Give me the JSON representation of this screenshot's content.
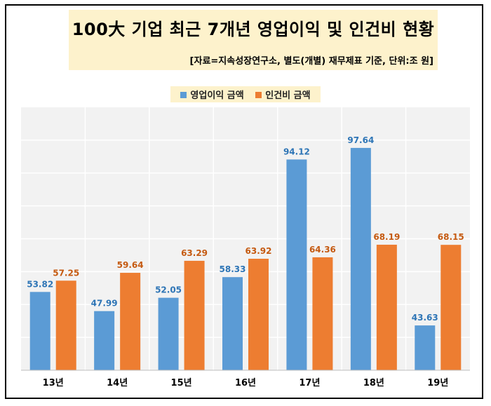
{
  "header": {
    "title": "100大 기업 최근 7개년 영업이익 및 인건비 현황",
    "source": "[자료=지속성장연구소, 별도(개별) 재무제표 기준, 단위:조 원]"
  },
  "colors": {
    "series1": "#5b9bd5",
    "series2": "#ed7d31",
    "label1": "#2e75b6",
    "label2": "#c55a11",
    "plot_bg": "#f2f2f2",
    "grid": "#ffffff"
  },
  "chart_data": {
    "type": "bar",
    "categories": [
      "13년",
      "14년",
      "15년",
      "16년",
      "17년",
      "18년",
      "19년"
    ],
    "series": [
      {
        "name": "영업이익 금액",
        "values": [
          53.82,
          47.99,
          52.05,
          58.33,
          94.12,
          97.64,
          43.63
        ],
        "labels": [
          "53.82",
          "47.99",
          "52.05",
          "58.33",
          "94.12",
          "97.64",
          "43.63"
        ]
      },
      {
        "name": "인건비 금액",
        "values": [
          57.25,
          59.64,
          63.29,
          63.92,
          64.36,
          68.19,
          68.15
        ],
        "labels": [
          "57.25",
          "59.64",
          "63.29",
          "63.92",
          "64.36",
          "68.19",
          "68.15"
        ]
      }
    ],
    "ylim": [
      30,
      110
    ],
    "grid": true,
    "legend_position": "top"
  }
}
